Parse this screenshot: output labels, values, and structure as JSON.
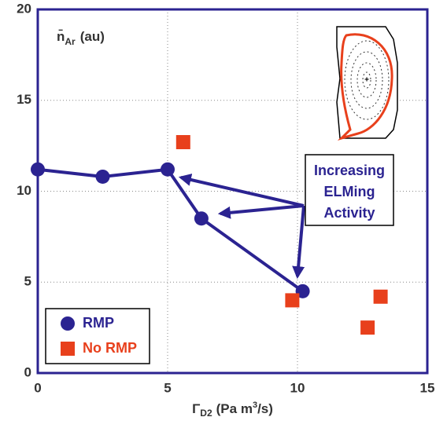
{
  "chart_data": {
    "type": "scatter",
    "xlabel": [
      "Γ",
      "D2",
      "(Pa m",
      "3",
      "/s)"
    ],
    "ylabel": [
      "n̄",
      "Ar",
      "(au)"
    ],
    "xlim": [
      0,
      15
    ],
    "ylim": [
      0,
      20
    ],
    "xticks": [
      0,
      5,
      10,
      15
    ],
    "yticks": [
      0,
      5,
      10,
      15,
      20
    ],
    "grid": true,
    "series": [
      {
        "name": "RMP",
        "color": "#2b2391",
        "marker": "circle",
        "connected": true,
        "x": [
          0,
          2.5,
          5,
          6.3,
          10.2
        ],
        "values": [
          11.2,
          10.8,
          11.2,
          8.5,
          4.5
        ]
      },
      {
        "name": "No RMP",
        "color": "#e8401c",
        "marker": "square",
        "connected": false,
        "x": [
          5.6,
          9.8,
          12.7,
          13.2
        ],
        "values": [
          12.7,
          4.0,
          2.5,
          4.2
        ]
      }
    ],
    "annotation": [
      "Increasing",
      "ELMing",
      "Activity"
    ],
    "legend": "lower left"
  }
}
